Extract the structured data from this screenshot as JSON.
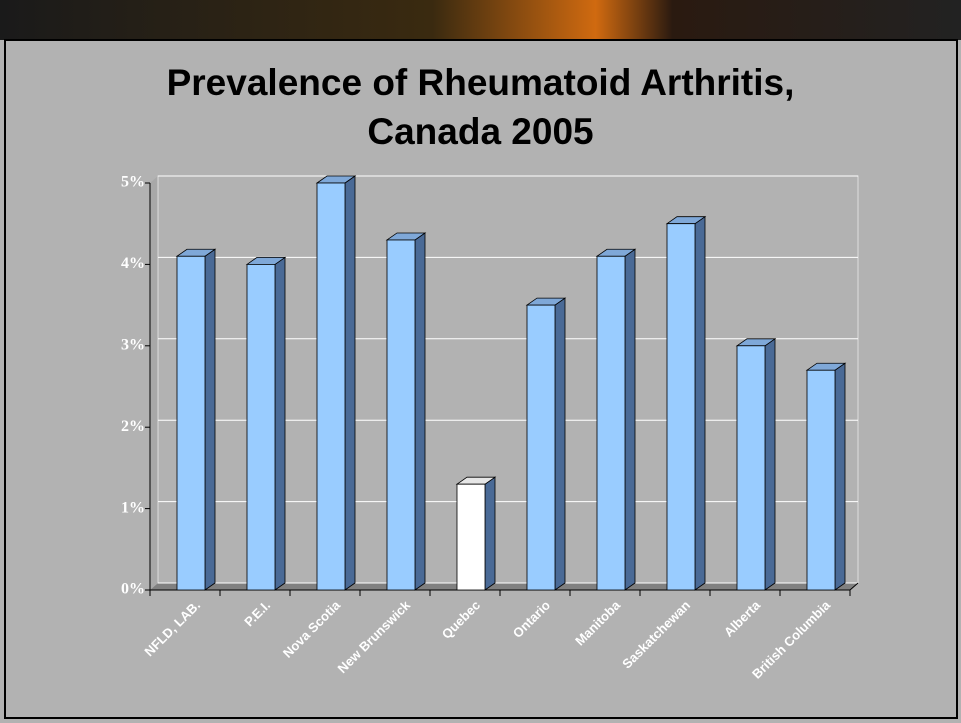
{
  "chart_data": {
    "type": "bar3d",
    "title": "Prevalence of Rheumatoid Arthritis, Canada 2005",
    "categories": [
      "NFLD, LAB.",
      "P.E.I.",
      "Nova Scotia",
      "New Brunswick",
      "Quebec",
      "Ontario",
      "Manitoba",
      "Saskatchewan",
      "Alberta",
      "British Columbia"
    ],
    "values": [
      4.1,
      4.0,
      5.0,
      4.3,
      1.3,
      3.5,
      4.1,
      4.5,
      3.0,
      2.7
    ],
    "colors": [
      "#99ccff",
      "#99ccff",
      "#99ccff",
      "#99ccff",
      "#ffffff",
      "#99ccff",
      "#99ccff",
      "#99ccff",
      "#99ccff",
      "#99ccff"
    ],
    "ylim": [
      0,
      5
    ],
    "yticks": [
      {
        "value": 0,
        "label": "0%"
      },
      {
        "value": 1,
        "label": "1%"
      },
      {
        "value": 2,
        "label": "2%"
      },
      {
        "value": 3,
        "label": "3%"
      },
      {
        "value": 4,
        "label": "4%"
      },
      {
        "value": 5,
        "label": "5%"
      }
    ],
    "grid": true
  }
}
